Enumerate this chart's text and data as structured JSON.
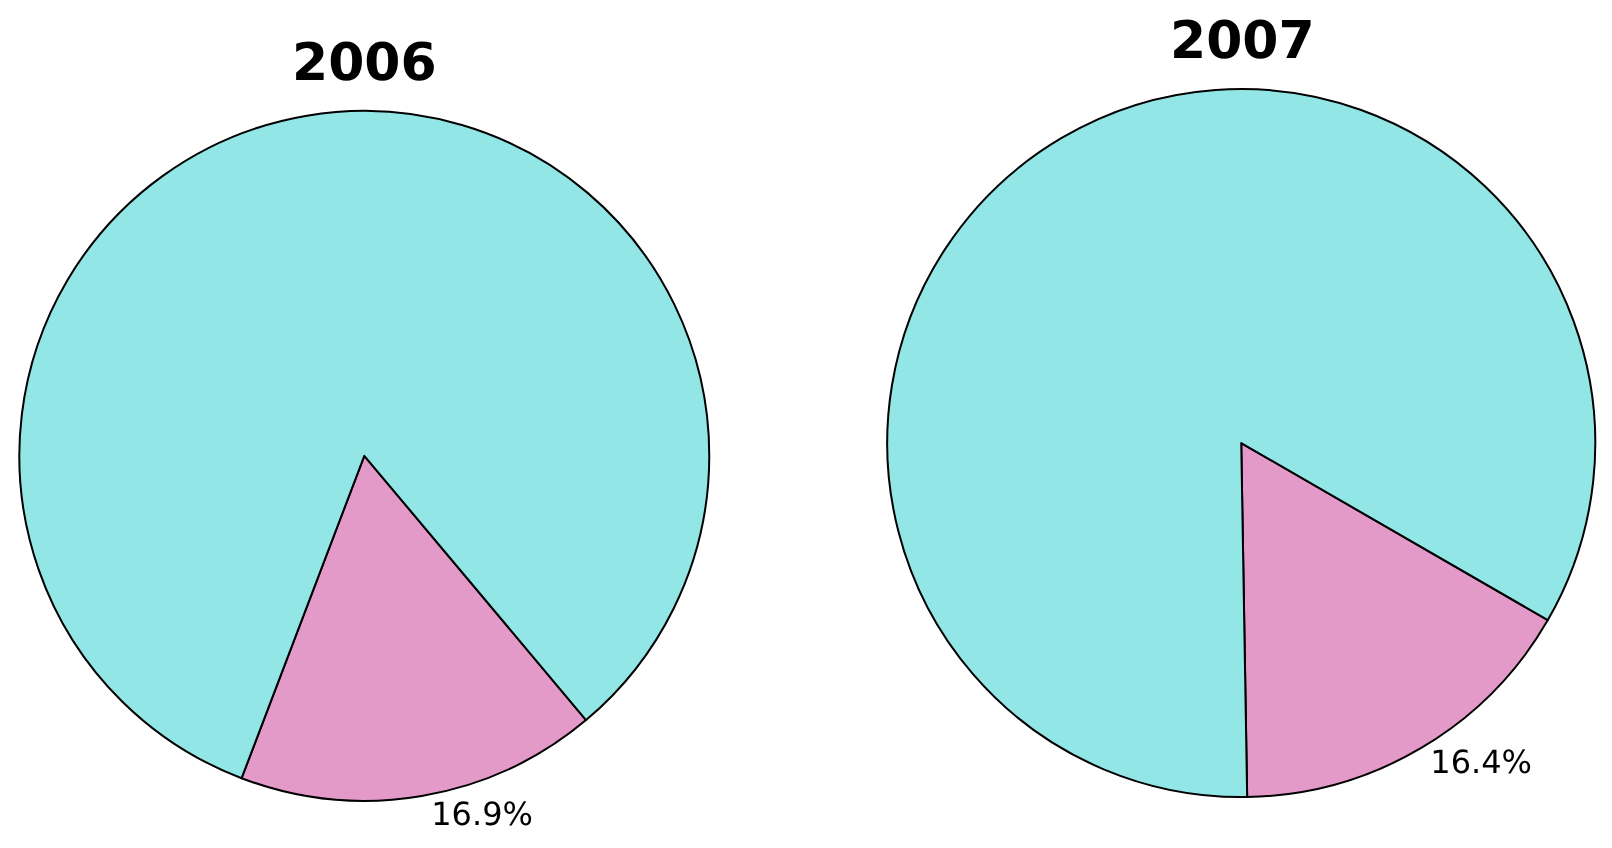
{
  "chart_data": [
    {
      "type": "pie",
      "title": "2006",
      "categories": [
        null,
        null
      ],
      "values": [
        16.9,
        83.1
      ],
      "colors": [
        "#e39ac8",
        "#92e6e6"
      ],
      "value_labels": [
        "16.9%",
        null
      ]
    },
    {
      "type": "pie",
      "title": "2007",
      "categories": [
        null,
        null
      ],
      "values": [
        16.4,
        83.6
      ],
      "colors": [
        "#e39ac8",
        "#92e6e6"
      ],
      "value_labels": [
        "16.4%",
        null
      ]
    }
  ]
}
